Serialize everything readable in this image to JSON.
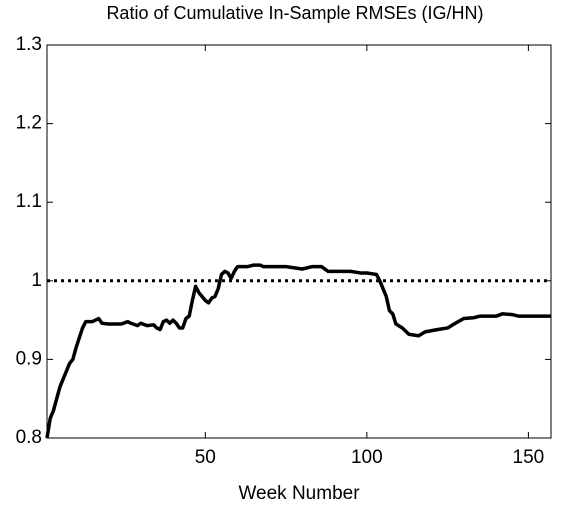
{
  "chart_data": {
    "type": "line",
    "title": "Ratio of Cumulative In-Sample RMSEs (IG/HN)",
    "xlabel": "Week Number",
    "x": [
      1,
      2,
      3,
      5,
      7,
      8,
      9,
      10,
      12,
      13,
      15,
      17,
      18,
      20,
      24,
      26,
      27,
      29,
      30,
      32,
      34,
      35,
      36,
      37,
      38,
      39,
      40,
      41,
      42,
      43,
      44,
      45,
      46,
      47,
      48,
      49,
      50,
      51,
      52,
      53,
      54,
      55,
      56,
      57,
      58,
      59,
      60,
      63,
      65,
      67,
      68,
      75,
      80,
      83,
      86,
      88,
      95,
      98,
      100,
      103,
      104,
      106,
      107,
      108,
      109,
      111,
      113,
      116,
      118,
      122,
      125,
      127,
      130,
      133,
      135,
      140,
      142,
      145,
      147,
      157
    ],
    "series": [
      {
        "name": "IG/HN",
        "color": "#000000",
        "values": [
          0.8,
          0.825,
          0.835,
          0.865,
          0.885,
          0.895,
          0.9,
          0.915,
          0.94,
          0.948,
          0.948,
          0.952,
          0.946,
          0.945,
          0.945,
          0.948,
          0.946,
          0.943,
          0.946,
          0.943,
          0.944,
          0.94,
          0.938,
          0.948,
          0.95,
          0.946,
          0.95,
          0.946,
          0.94,
          0.94,
          0.952,
          0.955,
          0.975,
          0.993,
          0.985,
          0.98,
          0.975,
          0.972,
          0.978,
          0.98,
          0.99,
          1.008,
          1.012,
          1.01,
          1.003,
          1.012,
          1.018,
          1.018,
          1.02,
          1.02,
          1.018,
          1.018,
          1.015,
          1.018,
          1.018,
          1.012,
          1.012,
          1.01,
          1.01,
          1.008,
          1.0,
          0.98,
          0.962,
          0.958,
          0.945,
          0.94,
          0.932,
          0.93,
          0.935,
          0.938,
          0.94,
          0.945,
          0.952,
          0.953,
          0.955,
          0.955,
          0.958,
          0.957,
          0.955,
          0.955
        ]
      }
    ],
    "reference_line": 1,
    "xlim": [
      1,
      157
    ],
    "xticks": [
      50,
      100,
      150
    ],
    "ylim": [
      0.8,
      1.3
    ],
    "yticks": [
      0.8,
      0.9,
      1,
      1.1,
      1.2,
      1.3
    ]
  }
}
